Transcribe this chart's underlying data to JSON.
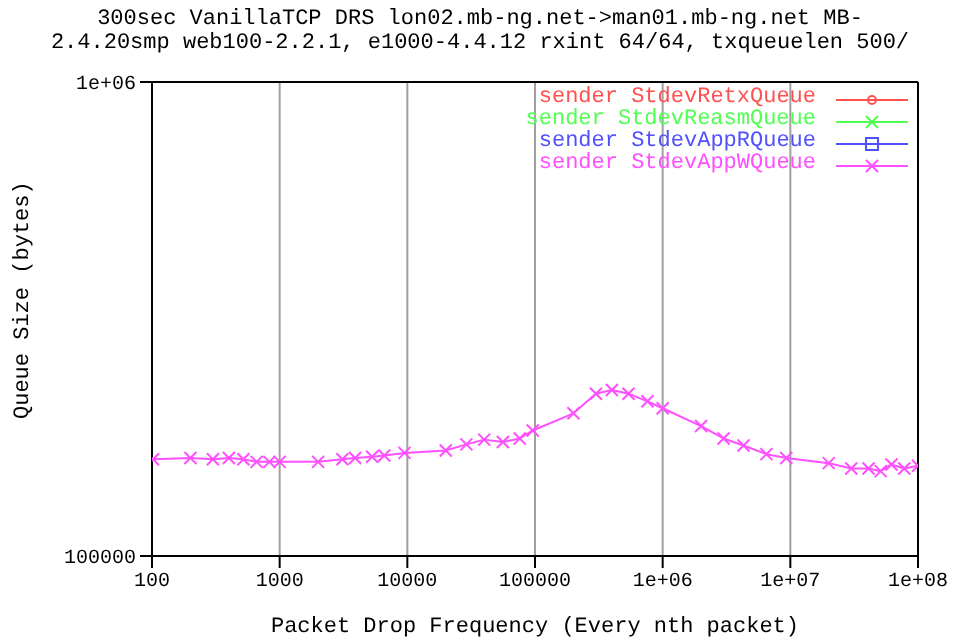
{
  "chart_data": {
    "type": "line",
    "title": "300sec VanillaTCP DRS lon02.mb-ng.net->man01.mb-ng.net MB-",
    "subtitle": "2.4.20smp web100-2.2.1, e1000-4.4.12 rxint 64/64, txqueuelen 500/",
    "xlabel": "Packet Drop Frequency (Every nth packet)",
    "ylabel": "Queue Size (bytes)",
    "log": "xy",
    "grid": "x",
    "legend": "top right",
    "line_style": "solid",
    "xlim": [
      100,
      100000000
    ],
    "xticks": [
      100,
      1000,
      10000,
      100000,
      {
        "value": 1000000,
        "label": "1e+06"
      },
      {
        "value": 10000000,
        "label": "1e+07"
      },
      {
        "value": 100000000,
        "label": "1e+08"
      }
    ],
    "ylim": [
      100000,
      1000000
    ],
    "yticks": [
      100000,
      {
        "value": 1000000,
        "label": "1e+06"
      }
    ],
    "x": [
      102,
      200,
      300,
      400,
      520,
      660,
      830,
      1000,
      2000,
      3100,
      3900,
      5300,
      6600,
      9500,
      20000,
      29000,
      40000,
      56000,
      76000,
      96000,
      200000,
      300000,
      400000,
      540000,
      760000,
      1000000,
      2000000,
      3000000,
      4300000,
      6500000,
      9300000,
      20000000,
      30000000,
      41000000,
      51000000,
      62000000,
      78000000,
      100000000
    ],
    "series": [
      {
        "name": "sender StdevRetxQueue",
        "color": "#ff5050",
        "marker": "circle",
        "values": [
          null,
          null,
          null,
          null,
          null,
          null,
          null,
          null,
          null,
          null,
          null,
          null,
          null,
          null,
          null,
          null,
          null,
          null,
          null,
          null,
          null,
          null,
          null,
          null,
          null,
          null,
          null,
          null,
          null,
          null,
          null,
          null,
          null,
          null,
          null,
          null,
          null,
          null
        ]
      },
      {
        "name": "sender StdevReasmQueue",
        "color": "#50ff50",
        "marker": "cross",
        "values": [
          null,
          null,
          null,
          null,
          null,
          null,
          null,
          null,
          null,
          null,
          null,
          null,
          null,
          null,
          null,
          null,
          null,
          null,
          null,
          null,
          null,
          null,
          null,
          null,
          null,
          null,
          null,
          null,
          null,
          null,
          null,
          null,
          null,
          null,
          null,
          null,
          null,
          null
        ]
      },
      {
        "name": "sender StdevAppRQueue",
        "color": "#5050ff",
        "marker": "square",
        "values": [
          null,
          null,
          null,
          null,
          null,
          null,
          null,
          null,
          null,
          null,
          null,
          null,
          null,
          null,
          null,
          null,
          null,
          null,
          null,
          null,
          null,
          null,
          null,
          null,
          null,
          null,
          null,
          null,
          null,
          null,
          null,
          null,
          null,
          null,
          null,
          null,
          null,
          null
        ]
      },
      {
        "name": "sender StdevAppWQueue",
        "color": "#ff50ff",
        "marker": "cross",
        "values": [
          160000,
          161000,
          160000,
          161000,
          160000,
          158000,
          158000,
          158000,
          158000,
          160000,
          161000,
          162000,
          163000,
          165000,
          167000,
          172000,
          176000,
          174000,
          177000,
          184000,
          200000,
          220000,
          224000,
          220000,
          212000,
          205000,
          188000,
          177000,
          171000,
          164000,
          161000,
          157000,
          153000,
          153000,
          151000,
          156000,
          153000,
          155000
        ]
      }
    ]
  }
}
